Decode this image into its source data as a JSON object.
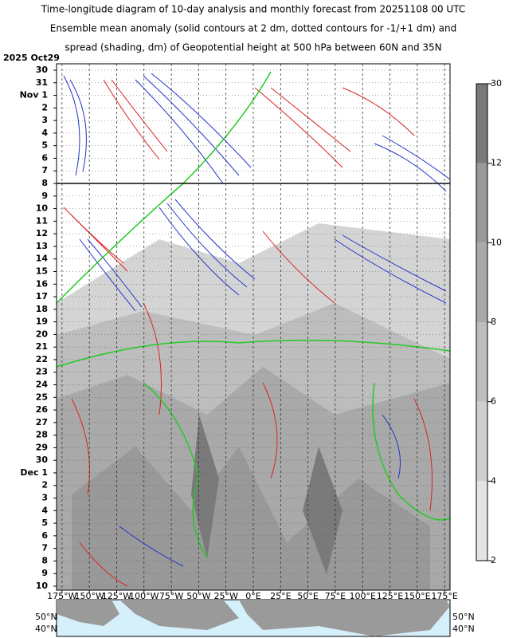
{
  "chart_data": {
    "type": "hovmoller",
    "title_lines": [
      "Time-longitude diagram of 10-day analysis and monthly forecast from 20251108 00 UTC",
      "Ensemble mean anomaly (solid contours at 2 dm, dotted contours for -1/+1 dm) and",
      "spread (shading, dm) of Geopotential height at 500 hPa between 60N and 35N"
    ],
    "start_label": "2025 Oct29",
    "categories": [
      "30",
      "31",
      "Nov 1",
      "2",
      "3",
      "4",
      "5",
      "6",
      "7",
      "8",
      "9",
      "10",
      "11",
      "12",
      "13",
      "14",
      "15",
      "16",
      "17",
      "18",
      "19",
      "20",
      "21",
      "22",
      "23",
      "24",
      "25",
      "26",
      "27",
      "28",
      "29",
      "30",
      "Dec 1",
      "2",
      "3",
      "4",
      "5",
      "6",
      "7",
      "8",
      "9",
      "10"
    ],
    "highlighted": [
      3,
      10,
      17,
      24,
      31,
      38
    ],
    "highlight_color": "#e00000",
    "xlim": [
      -180,
      180
    ],
    "xticks": [
      {
        "value": -175,
        "label": "175°W"
      },
      {
        "value": -150,
        "label": "150°W"
      },
      {
        "value": -125,
        "label": "125°W"
      },
      {
        "value": -100,
        "label": "100°W"
      },
      {
        "value": -75,
        "label": "75°W"
      },
      {
        "value": -50,
        "label": "50°W"
      },
      {
        "value": -25,
        "label": "25°W"
      },
      {
        "value": 0,
        "label": "0°E"
      },
      {
        "value": 25,
        "label": "25°E"
      },
      {
        "value": 50,
        "label": "50°E"
      },
      {
        "value": 75,
        "label": "75°E"
      },
      {
        "value": 100,
        "label": "100°E"
      },
      {
        "value": 125,
        "label": "125°E"
      },
      {
        "value": 150,
        "label": "150°E"
      },
      {
        "value": 175,
        "label": "175°E"
      }
    ],
    "grid": true,
    "colorbar": {
      "levels": [
        2,
        4,
        6,
        8,
        10,
        12,
        30
      ],
      "colors": [
        "#e4e4e4",
        "#cfcfcf",
        "#bdbdbd",
        "#a9a9a9",
        "#999999",
        "#7a7a7a"
      ],
      "label_color": "#1a237e"
    },
    "map_labels": [
      "50°N",
      "40°N"
    ]
  }
}
